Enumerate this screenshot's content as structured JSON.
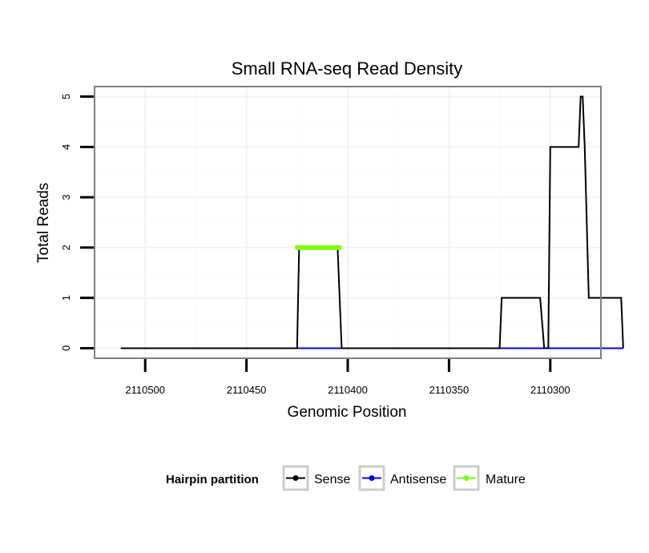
{
  "chart_data": {
    "type": "line",
    "title": "Small RNA-seq Read Density",
    "xlabel": "Genomic Position",
    "ylabel": "Total Reads",
    "x_reversed": true,
    "xlim": [
      2110525,
      2110275
    ],
    "ylim": [
      -0.2,
      5.2
    ],
    "x_ticks": [
      2110500,
      2110450,
      2110400,
      2110350,
      2110300
    ],
    "x_tick_labels": [
      "2110500",
      "2110450",
      "2110400",
      "2110350",
      "2110300"
    ],
    "y_ticks": [
      0,
      1,
      2,
      3,
      4,
      5
    ],
    "y_tick_labels": [
      "0",
      "1",
      "2",
      "3",
      "4",
      "5"
    ],
    "grid": true,
    "legend": {
      "title": "Hairpin partition",
      "placement": "bottom",
      "entries": [
        "Sense",
        "Antisense",
        "Mature"
      ]
    },
    "series": [
      {
        "name": "Sense",
        "color": "#000000",
        "x": [
          2110512,
          2110425,
          2110424,
          2110405,
          2110403,
          2110325,
          2110324,
          2110305,
          2110303,
          2110301,
          2110300,
          2110286,
          2110285,
          2110284,
          2110283,
          2110281,
          2110265,
          2110264
        ],
        "y": [
          0,
          0,
          2,
          2,
          0,
          0,
          1,
          1,
          0,
          0,
          4,
          4,
          5,
          5,
          4,
          1,
          1,
          0
        ]
      },
      {
        "name": "Antisense",
        "color": "#0000ff",
        "x": [
          2110512,
          2110264
        ],
        "y": [
          0,
          0
        ]
      },
      {
        "name": "Mature",
        "color": "#7fff00",
        "x": [
          2110425,
          2110404
        ],
        "y": [
          2,
          2
        ]
      }
    ]
  }
}
